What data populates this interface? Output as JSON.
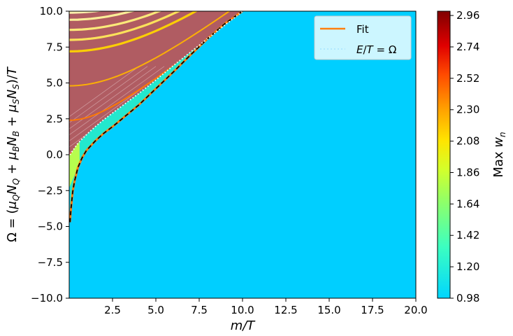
{
  "chart_data": {
    "type": "heatmap",
    "xlabel": "m/T",
    "ylabel": "Ω = (μ_Q N_Q + μ_B N_B + μ_S N_S)/T",
    "colorbar_label": "Max w_n",
    "xlim": [
      0.0,
      20.0
    ],
    "ylim": [
      -10.0,
      10.0
    ],
    "x_ticks": [
      "2.5",
      "5.0",
      "7.5",
      "10.0",
      "12.5",
      "15.0",
      "17.5",
      "20.0"
    ],
    "y_ticks": [
      "10.0",
      "7.5",
      "5.0",
      "2.5",
      "0.0",
      "−2.5",
      "−5.0",
      "−7.5",
      "−10.0"
    ],
    "colorbar_range": [
      0.98,
      2.99
    ],
    "colorbar_ticks": [
      "2.96",
      "2.74",
      "2.52",
      "2.30",
      "2.08",
      "1.86",
      "1.64",
      "1.42",
      "1.20",
      "0.98"
    ],
    "colormap": "jet",
    "background_value": 0.98,
    "legend_position": "top-right",
    "legend": [
      {
        "label": "Fit",
        "color": "#ff7f0e",
        "style": "solid"
      },
      {
        "label": "E/T = Ω",
        "color": "#ffffff",
        "style": "dotted"
      }
    ],
    "series": [
      {
        "name": "Fit",
        "x": [
          0.05,
          0.1,
          0.2,
          0.3,
          0.5,
          0.75,
          1.0,
          1.5,
          2.0,
          2.5,
          3.0,
          3.5,
          4.0,
          5.0,
          6.0,
          7.0,
          8.0,
          9.0,
          10.0
        ],
        "y": [
          -4.7,
          -3.8,
          -2.6,
          -1.9,
          -0.9,
          -0.2,
          0.3,
          0.95,
          1.5,
          1.95,
          2.45,
          2.95,
          3.45,
          4.6,
          5.75,
          6.95,
          8.1,
          9.15,
          10.0
        ]
      },
      {
        "name": "E/T = Ω",
        "x": [
          0.05,
          0.5,
          1.0,
          1.5,
          2.0,
          3.0,
          4.0,
          5.0,
          6.0,
          7.0,
          8.0,
          9.0,
          10.0
        ],
        "y": [
          0.0,
          0.8,
          1.4,
          1.95,
          2.45,
          3.35,
          4.25,
          5.2,
          6.2,
          7.15,
          8.1,
          9.05,
          10.0
        ]
      }
    ],
    "pole_curves_omega_at_m0": [
      0.0,
      2.4,
      4.8,
      7.2,
      8.0,
      8.7,
      9.4,
      9.9
    ]
  }
}
